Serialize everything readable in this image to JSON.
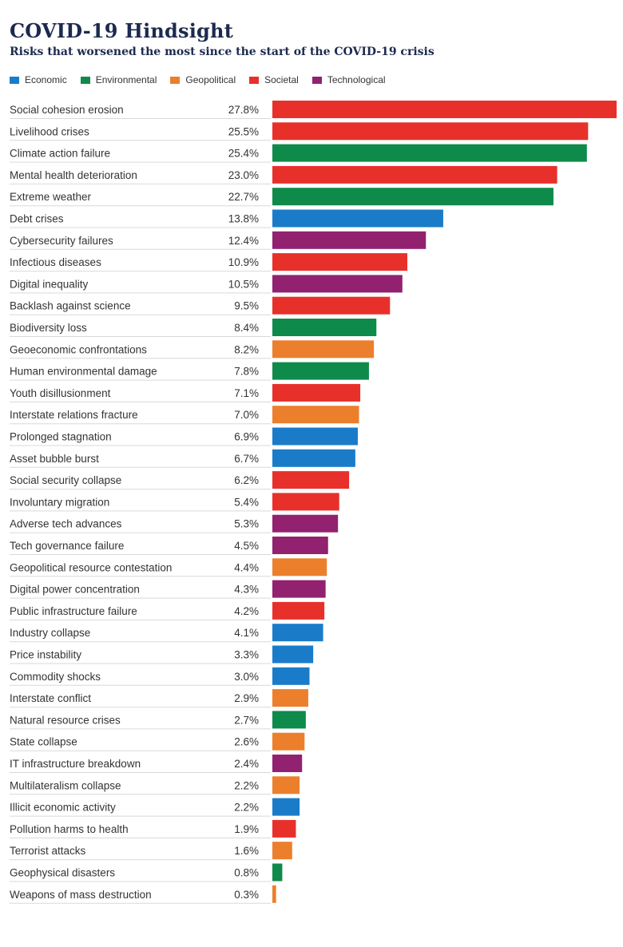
{
  "chart_data": {
    "type": "bar",
    "orientation": "horizontal",
    "title": "COVID-19 Hindsight",
    "subtitle": "Risks that worsened the most since the start of the COVID-19 crisis",
    "legend": [
      {
        "name": "Economic",
        "color": "#1a7cc9"
      },
      {
        "name": "Environmental",
        "color": "#0e8a4a"
      },
      {
        "name": "Geopolitical",
        "color": "#ec7f2c"
      },
      {
        "name": "Societal",
        "color": "#e8302b"
      },
      {
        "name": "Technological",
        "color": "#922170"
      }
    ],
    "legend_position": "top-left",
    "value_suffix": "%",
    "xlim": [
      0,
      27.8
    ],
    "grid": false,
    "categories": [
      "Social cohesion erosion",
      "Livelihood crises",
      "Climate action failure",
      "Mental health deterioration",
      "Extreme weather",
      "Debt crises",
      "Cybersecurity failures",
      "Infectious diseases",
      "Digital inequality",
      "Backlash against science",
      "Biodiversity loss",
      "Geoeconomic confrontations",
      "Human environmental damage",
      "Youth disillusionment",
      "Interstate relations fracture",
      "Prolonged stagnation",
      "Asset bubble burst",
      "Social security collapse",
      "Involuntary migration",
      "Adverse tech advances",
      "Tech governance failure",
      "Geopolitical resource contestation",
      "Digital power concentration",
      "Public infrastructure failure",
      "Industry collapse",
      "Price instability",
      "Commodity shocks",
      "Interstate conflict",
      "Natural resource crises",
      "State collapse",
      "IT infrastructure breakdown",
      "Multilateralism collapse",
      "Illicit economic activity",
      "Pollution harms to health",
      "Terrorist attacks",
      "Geophysical disasters",
      "Weapons of mass destruction"
    ],
    "values": [
      27.8,
      25.5,
      25.4,
      23.0,
      22.7,
      13.8,
      12.4,
      10.9,
      10.5,
      9.5,
      8.4,
      8.2,
      7.8,
      7.1,
      7.0,
      6.9,
      6.7,
      6.2,
      5.4,
      5.3,
      4.5,
      4.4,
      4.3,
      4.2,
      4.1,
      3.3,
      3.0,
      2.9,
      2.7,
      2.6,
      2.4,
      2.2,
      2.2,
      1.9,
      1.6,
      0.8,
      0.3
    ],
    "value_labels": [
      "27.8%",
      "25.5%",
      "25.4%",
      "23.0%",
      "22.7%",
      "13.8%",
      "12.4%",
      "10.9%",
      "10.5%",
      "9.5%",
      "8.4%",
      "8.2%",
      "7.8%",
      "7.1%",
      "7.0%",
      "6.9%",
      "6.7%",
      "6.2%",
      "5.4%",
      "5.3%",
      "4.5%",
      "4.4%",
      "4.3%",
      "4.2%",
      "4.1%",
      "3.3%",
      "3.0%",
      "2.9%",
      "2.7%",
      "2.6%",
      "2.4%",
      "2.2%",
      "2.2%",
      "1.9%",
      "1.6%",
      "0.8%",
      "0.3%"
    ],
    "category_group": [
      "Societal",
      "Societal",
      "Environmental",
      "Societal",
      "Environmental",
      "Economic",
      "Technological",
      "Societal",
      "Technological",
      "Societal",
      "Environmental",
      "Geopolitical",
      "Environmental",
      "Societal",
      "Geopolitical",
      "Economic",
      "Economic",
      "Societal",
      "Societal",
      "Technological",
      "Technological",
      "Geopolitical",
      "Technological",
      "Societal",
      "Economic",
      "Economic",
      "Economic",
      "Geopolitical",
      "Environmental",
      "Geopolitical",
      "Technological",
      "Geopolitical",
      "Economic",
      "Societal",
      "Geopolitical",
      "Environmental",
      "Geopolitical"
    ]
  }
}
